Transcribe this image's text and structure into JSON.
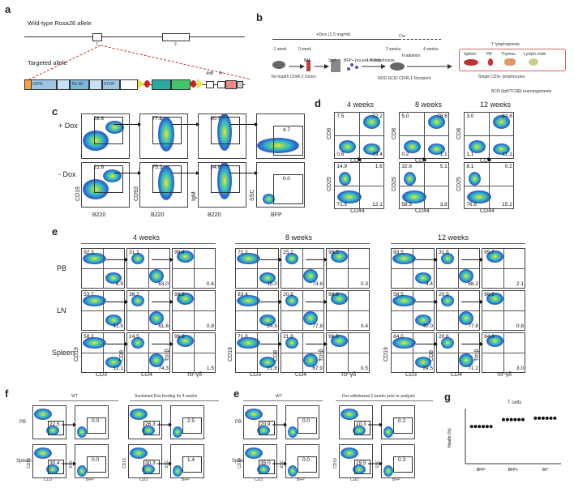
{
  "panels": {
    "a": {
      "label": "a",
      "wt_title": "Wild-type Rosa26 allele",
      "targeted_title": "Targeted allele",
      "exon1": "1",
      "exon2": "2",
      "parts": [
        "SA",
        "3XPA",
        "Rev1",
        "Pr",
        "Tet 3G",
        "Pr",
        "Rev1",
        "STOP",
        "TRE 3G",
        "Pr",
        "AttB",
        "Pr",
        "pA",
        "Neo",
        "AttP",
        "pA",
        "Pr"
      ]
    },
    "b": {
      "label": "b",
      "dox": "+Dox (1.5 mg/ml)",
      "cre": "Cre",
      "t1": "-1 week",
      "t2": "0 week",
      "t3": "2 weeks",
      "t4": "4 weeks",
      "donor": "Tet-Irsp65 CD45.2 Donor",
      "bm": "BM",
      "sort": "Sort",
      "bfp": "BFP+ pro-pre-B cells",
      "dose": "1 million/mouse",
      "irr": "Irradiation",
      "recipient": "NOD-SCID CD45.1 Recipient",
      "tlymph": "T lymphopoesis",
      "organs": [
        "Spleen",
        "PB",
        "Thymus",
        "Lymph node"
      ],
      "single": "Single CD3+ lymphocytes",
      "bcr": "BCR (IgH/TCRβ) rearrangements"
    },
    "c": {
      "label": "c",
      "plus": "+ Dox",
      "minus": "- Dox",
      "plus_vals": [
        "28.6",
        "77.8",
        "80.7",
        "4.7"
      ],
      "minus_vals": [
        "21.6",
        "75.3",
        "84.8",
        "0.0"
      ],
      "xlabels": [
        "B220",
        "B220",
        "B220",
        "BFP"
      ],
      "ylabels": [
        "CD19",
        "CD93",
        "IgM",
        "SSC"
      ]
    },
    "d": {
      "label": "d",
      "weeks": [
        "4 weeks",
        "8 weeks",
        "12 weeks"
      ],
      "top": [
        [
          "7.5",
          "72.2",
          "0.6",
          "19.4"
        ],
        [
          "5.0",
          "78.6",
          "0.2",
          "1.1"
        ],
        [
          "3.0",
          "84.8",
          "1.1",
          "11.1"
        ]
      ],
      "bottom": [
        [
          "14.9",
          "1.6",
          "71.5",
          "12.1"
        ],
        [
          "32.6",
          "5.1",
          "58.5",
          "3.8"
        ],
        [
          "8.1",
          "0.2",
          "76.5",
          "15.2"
        ]
      ],
      "xlabels": [
        "CD4",
        "CD44"
      ],
      "ylabels": [
        "CD8",
        "CD25"
      ]
    },
    "e": {
      "label": "e",
      "weeks": [
        "4 weeks",
        "8 weeks",
        "12 weeks"
      ],
      "rows": [
        "PB",
        "LN",
        "Spleen"
      ],
      "vals": [
        [
          [
            "92.3",
            "6.9"
          ],
          [
            "31.1",
            "63.0"
          ],
          [
            "98.4",
            "0.6"
          ],
          [
            "71.2",
            "15.0"
          ],
          [
            "25.2",
            "73.8"
          ],
          [
            "99.5",
            "0.3"
          ],
          [
            "93.5",
            "4.4"
          ],
          [
            "31.8",
            "68.2"
          ],
          [
            "95.7",
            "2.1"
          ]
        ],
        [
          [
            "53.7",
            "41.5"
          ],
          [
            "36.7",
            "61.6"
          ],
          [
            "98.3",
            "0.8"
          ],
          [
            "83.4",
            "24.5"
          ],
          [
            "20.9",
            "77.8"
          ],
          [
            "98.8",
            "0.4"
          ],
          [
            "58.5",
            "40.0"
          ],
          [
            "20.9",
            "77.8"
          ],
          [
            "98.9",
            "0.8"
          ]
        ],
        [
          [
            "58.2",
            "12.1"
          ],
          [
            "24.5",
            "74.3"
          ],
          [
            "96.3",
            "1.5"
          ],
          [
            "71.0",
            "21.8"
          ],
          [
            "21.8",
            "67.9"
          ],
          [
            "96.5",
            "0.5"
          ],
          [
            "84.0",
            "24.5"
          ],
          [
            "20.6",
            "71.2"
          ],
          [
            "94.6",
            "3.0"
          ]
        ]
      ],
      "xlabels": [
        "CD3",
        "CD4",
        "Tcr-γδ"
      ],
      "ylabels": [
        "CD19",
        "CD8",
        "Tcr-β"
      ]
    },
    "f": {
      "label": "f",
      "wt": "WT",
      "cond": "Sustained Dox feeding for 4 weeks",
      "rows": [
        "PB",
        "Spleen"
      ],
      "vals": [
        "22.5",
        "0.0",
        "26.3",
        "2.5",
        "30.4",
        "0.0",
        "30.3",
        "1.4"
      ],
      "xlabels": [
        "CD3",
        "BFP"
      ],
      "ylabels": [
        "CD19",
        "SSC"
      ]
    },
    "e2": {
      "label": "e",
      "wt": "WT",
      "cond": "Dox withdrawal 2 weeks prior to analysis",
      "rows": [
        "PB",
        "Spleen"
      ],
      "vals": [
        "20.9",
        "0.0",
        "10.3",
        "0.2",
        "35.0",
        "0.0",
        "19.5",
        "0.3"
      ],
      "xlabels": [
        "CD3",
        "BFP"
      ],
      "ylabels": [
        "CD19",
        "SSC"
      ]
    },
    "g": {
      "label": "g",
      "title": "T cells",
      "ylabel": "Health (%)",
      "categories": [
        "BFP-",
        "BFP+",
        "WT"
      ]
    }
  },
  "chart_data": {
    "type": "scatter",
    "title": "T cells",
    "ylabel": "Health (%)",
    "categories": [
      "BFP-",
      "BFP+",
      "WT"
    ],
    "series": [
      {
        "values": [
          [
            27,
            27,
            27,
            27,
            27,
            27
          ],
          [
            32,
            32,
            32,
            32,
            32,
            32
          ],
          [
            33,
            33,
            33,
            33,
            33,
            33
          ]
        ]
      }
    ],
    "ylim": [
      0,
      40
    ]
  }
}
